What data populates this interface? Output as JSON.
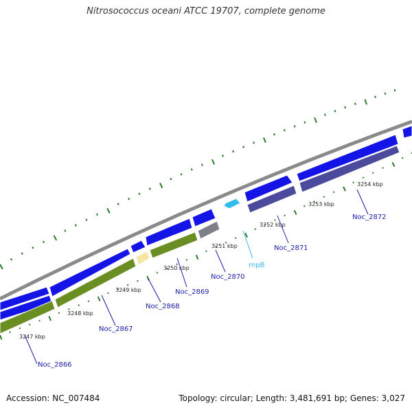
{
  "title": "Nitrosococcus oceani ATCC 19707, complete genome",
  "accession": "Accession: NC_007484",
  "stats": "Topology: circular; Length: 3,481,691 bp; Genes: 3,027",
  "colors": {
    "backbone": "#888888",
    "forward_gene": "#1414e6",
    "reverse_gene_green": "#6b8e23",
    "reverse_gene_purple": "#4b4a9c",
    "pseudogene_gray": "#7f7f8a",
    "pale_gene": "#f2e6a0",
    "rna_gene": "#33bbee",
    "tick": "#2a7a2a",
    "label": "#1a1aa6"
  },
  "ticks": [
    {
      "label": "3247 kbp"
    },
    {
      "label": "3248 kbp"
    },
    {
      "label": "3249 kbp"
    },
    {
      "label": "3250 kbp"
    },
    {
      "label": "3251 kbp"
    },
    {
      "label": "3252 kbp"
    },
    {
      "label": "3253 kbp"
    },
    {
      "label": "3254 kbp"
    }
  ],
  "gene_labels": [
    {
      "name": "Noc_2866"
    },
    {
      "name": "Noc_2867"
    },
    {
      "name": "Noc_2868"
    },
    {
      "name": "Noc_2869"
    },
    {
      "name": "Noc_2870"
    },
    {
      "name": "rnpB"
    },
    {
      "name": "Noc_2871"
    },
    {
      "name": "Noc_2872"
    }
  ]
}
